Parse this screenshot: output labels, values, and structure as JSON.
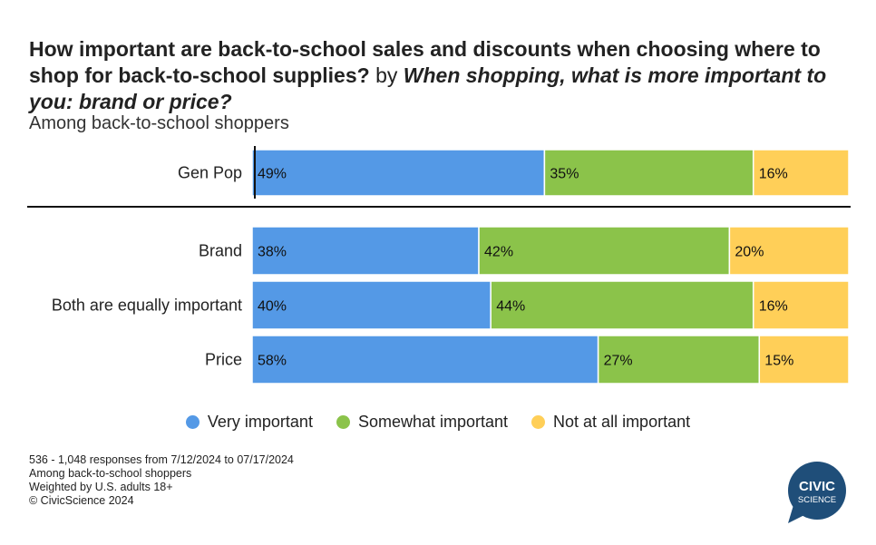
{
  "title": {
    "main": "How important are back-to-school sales and discounts when choosing where to shop for back-to-school supplies?",
    "by": " by ",
    "question": "When shopping, what is more important to you: brand or price?"
  },
  "subtitle": "Among back-to-school shoppers",
  "colors": {
    "very": "#5499e6",
    "somewhat": "#8bc34a",
    "not": "#ffcf58",
    "logo": "#1f4e79"
  },
  "chart_data": {
    "type": "bar",
    "orientation": "horizontal",
    "stacked": true,
    "normalized": true,
    "categories": [
      "Gen Pop",
      "Brand",
      "Both are equally important",
      "Price"
    ],
    "series": [
      {
        "name": "Very important",
        "values": [
          49,
          38,
          40,
          58
        ]
      },
      {
        "name": "Somewhat important",
        "values": [
          35,
          42,
          44,
          27
        ]
      },
      {
        "name": "Not at all important",
        "values": [
          16,
          20,
          16,
          15
        ]
      }
    ],
    "value_suffix": "%",
    "legend_position": "bottom"
  },
  "footer": [
    "536 - 1,048 responses from 7/12/2024 to 07/17/2024",
    "Among back-to-school shoppers",
    "Weighted by U.S. adults 18+",
    "© CivicScience 2024"
  ],
  "logo": {
    "line1": "CIVIC",
    "line2": "SCIENCE"
  }
}
